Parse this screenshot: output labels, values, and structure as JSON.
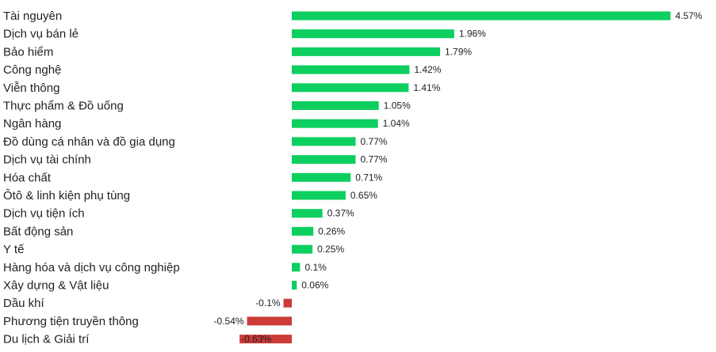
{
  "chart_data": {
    "type": "bar",
    "orientation": "horizontal",
    "categories": [
      "Tài nguyên",
      "Dịch vụ bán lẻ",
      "Bảo hiểm",
      "Công nghệ",
      "Viễn thông",
      "Thực phẩm & Đồ uống",
      "Ngân hàng",
      "Đồ dùng cá nhân và đồ gia dụng",
      "Dịch vụ tài chính",
      "Hóa chất",
      "Ôtô & linh kiện phụ tùng",
      "Dịch vụ tiện ích",
      "Bất động sản",
      "Y tế",
      "Hàng hóa và dịch vụ công nghiệp",
      "Xây dựng & Vật liệu",
      "Dầu khí",
      "Phương tiện truyền thông",
      "Du lịch & Giải trí"
    ],
    "values": [
      4.57,
      1.96,
      1.79,
      1.42,
      1.41,
      1.05,
      1.04,
      0.77,
      0.77,
      0.71,
      0.65,
      0.37,
      0.26,
      0.25,
      0.1,
      0.06,
      -0.1,
      -0.54,
      -0.63
    ],
    "value_labels": [
      "4.57%",
      "1.96%",
      "1.79%",
      "1.42%",
      "1.41%",
      "1.05%",
      "1.04%",
      "0.77%",
      "0.77%",
      "0.71%",
      "0.65%",
      "0.37%",
      "0.26%",
      "0.25%",
      "0.1%",
      "0.06%",
      "-0.1%",
      "-0.54%",
      "-0.63%"
    ],
    "colors": {
      "positive": "#0dcf5f",
      "negative": "#cc3b37"
    },
    "xlim": [
      -0.63,
      4.57
    ],
    "grid": false,
    "legend": "none"
  }
}
